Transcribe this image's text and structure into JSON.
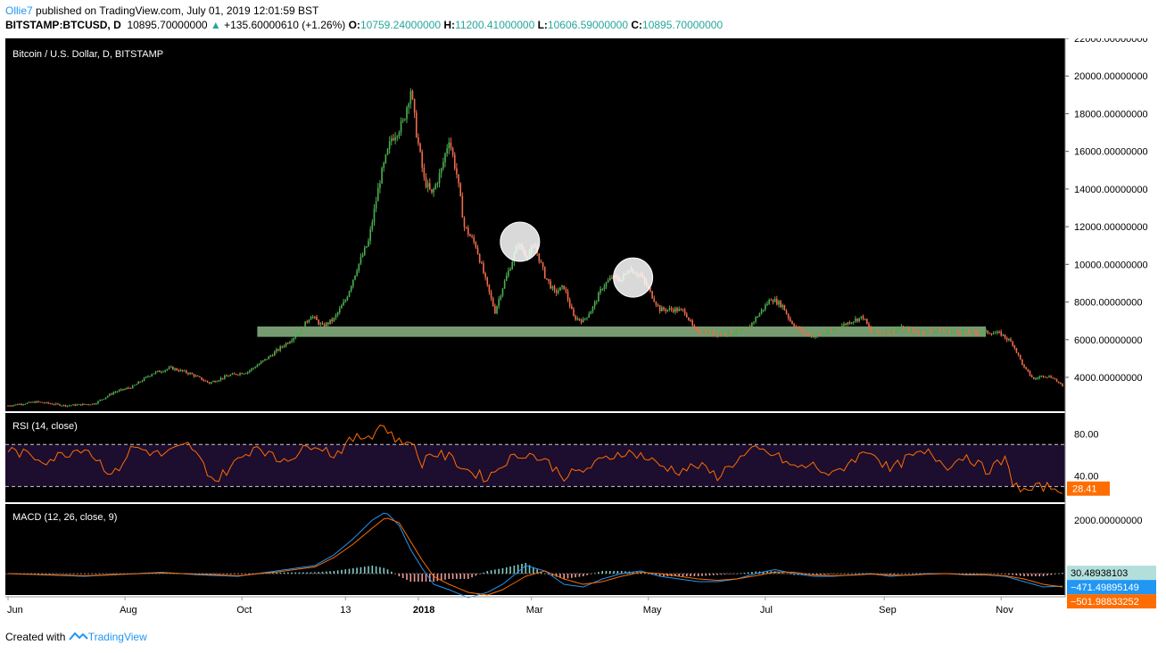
{
  "header": {
    "author": "Ollie7",
    "published": " published on TradingView.com, July 01, 2019 12:01:59 BST",
    "symbol": "BITSTAMP:BTCUSD, D",
    "last": "10895.70000000",
    "change": "+135.60000610 (+1.26%)",
    "o_label": "O:",
    "o_value": "10759.24000000",
    "h_label": "H:",
    "h_value": "11200.41000000",
    "l_label": "L:",
    "l_value": "10606.59000000",
    "c_label": "C:",
    "c_value": "10895.70000000"
  },
  "footer": {
    "created": "Created with",
    "brand": "TradingView"
  },
  "colors": {
    "up": "#4caf50",
    "down": "#ef6c4a",
    "rsi": "#ff6d00",
    "macd": "#2196f3",
    "signal": "#ff6d00",
    "band": "#8bb685",
    "pane_bg": "#000000"
  },
  "chart_data": [
    {
      "type": "candlestick",
      "title": "Bitcoin / U.S. Dollar, D, BITSTAMP",
      "ylim": [
        2200,
        22000
      ],
      "yticks": [
        "22000.00000000",
        "20000.00000000",
        "18000.00000000",
        "16000.00000000",
        "14000.00000000",
        "12000.00000000",
        "10000.00000000",
        "8000.00000000",
        "6000.00000000",
        "4000.00000000"
      ],
      "ytick_values": [
        22000,
        20000,
        18000,
        16000,
        14000,
        12000,
        10000,
        8000,
        6000,
        4000
      ],
      "xticks": [
        "Jun",
        "Aug",
        "Oct",
        "13",
        "2018",
        "Mar",
        "May",
        "Jul",
        "Sep",
        "Nov"
      ],
      "xtick_positions": [
        0,
        61,
        122,
        176,
        214,
        273,
        334,
        395,
        457,
        518
      ],
      "price_path": [
        [
          0,
          2500
        ],
        [
          15,
          2700
        ],
        [
          30,
          2500
        ],
        [
          45,
          2600
        ],
        [
          55,
          3200
        ],
        [
          65,
          3500
        ],
        [
          75,
          4200
        ],
        [
          85,
          4500
        ],
        [
          95,
          4200
        ],
        [
          105,
          3700
        ],
        [
          115,
          4100
        ],
        [
          125,
          4300
        ],
        [
          135,
          5000
        ],
        [
          145,
          5800
        ],
        [
          152,
          6400
        ],
        [
          158,
          7300
        ],
        [
          164,
          6700
        ],
        [
          170,
          7100
        ],
        [
          176,
          8100
        ],
        [
          182,
          9800
        ],
        [
          188,
          11200
        ],
        [
          194,
          14500
        ],
        [
          200,
          16700
        ],
        [
          206,
          17500
        ],
        [
          210,
          19300
        ],
        [
          213,
          17000
        ],
        [
          217,
          14500
        ],
        [
          221,
          13700
        ],
        [
          226,
          15000
        ],
        [
          230,
          16700
        ],
        [
          234,
          14800
        ],
        [
          238,
          12000
        ],
        [
          244,
          11000
        ],
        [
          250,
          8800
        ],
        [
          254,
          7500
        ],
        [
          258,
          8800
        ],
        [
          262,
          9900
        ],
        [
          266,
          11100
        ],
        [
          270,
          10500
        ],
        [
          275,
          10900
        ],
        [
          280,
          9400
        ],
        [
          285,
          8500
        ],
        [
          290,
          8800
        ],
        [
          295,
          7200
        ],
        [
          300,
          7000
        ],
        [
          305,
          7700
        ],
        [
          310,
          8800
        ],
        [
          315,
          9300
        ],
        [
          320,
          9200
        ],
        [
          324,
          9800
        ],
        [
          330,
          9400
        ],
        [
          335,
          8500
        ],
        [
          340,
          7600
        ],
        [
          348,
          7600
        ],
        [
          353,
          7500
        ],
        [
          358,
          6500
        ],
        [
          365,
          6400
        ],
        [
          372,
          6300
        ],
        [
          378,
          6400
        ],
        [
          385,
          6500
        ],
        [
          392,
          7400
        ],
        [
          398,
          8200
        ],
        [
          404,
          7800
        ],
        [
          408,
          7000
        ],
        [
          414,
          6400
        ],
        [
          420,
          6200
        ],
        [
          425,
          6300
        ],
        [
          430,
          6500
        ],
        [
          440,
          7000
        ],
        [
          446,
          7200
        ],
        [
          450,
          6400
        ],
        [
          458,
          6400
        ],
        [
          466,
          6600
        ],
        [
          475,
          6400
        ],
        [
          485,
          6500
        ],
        [
          495,
          6400
        ],
        [
          505,
          6350
        ],
        [
          512,
          6400
        ],
        [
          518,
          6300
        ],
        [
          524,
          5800
        ],
        [
          530,
          4500
        ],
        [
          535,
          3900
        ],
        [
          540,
          4100
        ],
        [
          545,
          4000
        ],
        [
          550,
          3500
        ]
      ],
      "band": {
        "y": [
          6150,
          6700
        ],
        "x": [
          130,
          510
        ]
      },
      "circles": [
        [
          267,
          11200
        ],
        [
          326,
          9300
        ]
      ]
    },
    {
      "type": "line",
      "title": "RSI (14, close)",
      "ylim": [
        15,
        100
      ],
      "yticks": [
        "80.00",
        "40.00"
      ],
      "ytick_values": [
        80,
        40
      ],
      "bands": [
        30,
        70
      ],
      "last_value": "28.41",
      "x": [
        0,
        20,
        40,
        55,
        65,
        80,
        95,
        100,
        108,
        120,
        130,
        140,
        150,
        160,
        170,
        180,
        190,
        195,
        200,
        205,
        210,
        215,
        220,
        230,
        240,
        250,
        260,
        270,
        280,
        290,
        300,
        310,
        320,
        330,
        340,
        350,
        360,
        370,
        380,
        390,
        400,
        410,
        420,
        430,
        440,
        450,
        460,
        470,
        480,
        490,
        500,
        510,
        520,
        524,
        530,
        540,
        550
      ],
      "y": [
        65,
        55,
        68,
        40,
        68,
        60,
        70,
        55,
        35,
        55,
        70,
        55,
        60,
        72,
        60,
        75,
        80,
        90,
        80,
        70,
        76,
        50,
        62,
        58,
        45,
        38,
        55,
        62,
        55,
        40,
        45,
        55,
        63,
        60,
        50,
        45,
        50,
        40,
        55,
        65,
        60,
        48,
        50,
        40,
        55,
        65,
        45,
        58,
        62,
        50,
        60,
        45,
        55,
        35,
        25,
        30,
        28
      ]
    },
    {
      "type": "line",
      "title": "MACD (12, 26, close, 9)",
      "ylim": [
        -800,
        2600
      ],
      "yticks": [
        "2000.00000000"
      ],
      "ytick_values": [
        2000
      ],
      "last_values": [
        "30.48938103",
        "−471.49895149",
        "−501.98833252"
      ],
      "x": [
        0,
        40,
        80,
        100,
        120,
        140,
        160,
        170,
        180,
        190,
        197,
        204,
        210,
        216,
        222,
        230,
        240,
        250,
        258,
        270,
        280,
        290,
        300,
        310,
        320,
        330,
        340,
        350,
        360,
        370,
        380,
        390,
        400,
        410,
        420,
        430,
        440,
        450,
        460,
        470,
        480,
        490,
        500,
        510,
        520,
        530,
        540,
        550
      ],
      "macd": [
        0,
        -100,
        50,
        -50,
        -100,
        100,
        300,
        700,
        1300,
        2000,
        2300,
        1800,
        900,
        200,
        -400,
        -600,
        -900,
        -700,
        -400,
        300,
        100,
        -400,
        -500,
        -200,
        0,
        100,
        -100,
        -200,
        -300,
        -300,
        -200,
        0,
        150,
        0,
        -100,
        -100,
        -50,
        0,
        -100,
        -50,
        0,
        0,
        -50,
        -50,
        -100,
        -300,
        -500,
        -470
      ],
      "signal": [
        0,
        -80,
        30,
        -20,
        -80,
        60,
        250,
        600,
        1100,
        1700,
        2100,
        1900,
        1200,
        500,
        -100,
        -400,
        -700,
        -800,
        -600,
        -100,
        100,
        -200,
        -400,
        -300,
        -100,
        50,
        0,
        -100,
        -200,
        -250,
        -200,
        -80,
        60,
        50,
        -50,
        -80,
        -60,
        -20,
        -60,
        -60,
        -20,
        0,
        -30,
        -40,
        -80,
        -200,
        -400,
        -500
      ],
      "histogram": [
        0,
        -20,
        20,
        -30,
        -20,
        40,
        50,
        100,
        200,
        300,
        200,
        -100,
        -300,
        -300,
        -300,
        -200,
        -200,
        100,
        200,
        400,
        0,
        -200,
        -100,
        100,
        100,
        50,
        -100,
        -100,
        -100,
        -50,
        0,
        80,
        90,
        -50,
        -50,
        -20,
        10,
        20,
        -40,
        10,
        20,
        0,
        -20,
        -10,
        -20,
        -100,
        -100,
        30
      ]
    }
  ]
}
